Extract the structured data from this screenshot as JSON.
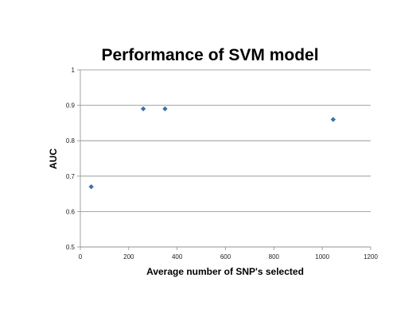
{
  "chart_data": {
    "type": "scatter",
    "title": "Performance of SVM model",
    "xlabel": "Average number of SNP's selected",
    "ylabel": "AUC",
    "xlim": [
      0,
      1200
    ],
    "ylim": [
      0.5,
      1
    ],
    "x_ticks": [
      "0",
      "200",
      "400",
      "600",
      "800",
      "1000",
      "1200"
    ],
    "y_ticks": [
      "0.5",
      "0.6",
      "0.7",
      "0.8",
      "0.9",
      "1"
    ],
    "grid": true,
    "legend": "none",
    "series": [
      {
        "color": "#3f6faa",
        "marker": "diamond",
        "points": [
          {
            "x": 45,
            "y": 0.67
          },
          {
            "x": 260,
            "y": 0.89
          },
          {
            "x": 350,
            "y": 0.89
          },
          {
            "x": 1045,
            "y": 0.86
          }
        ]
      }
    ]
  }
}
